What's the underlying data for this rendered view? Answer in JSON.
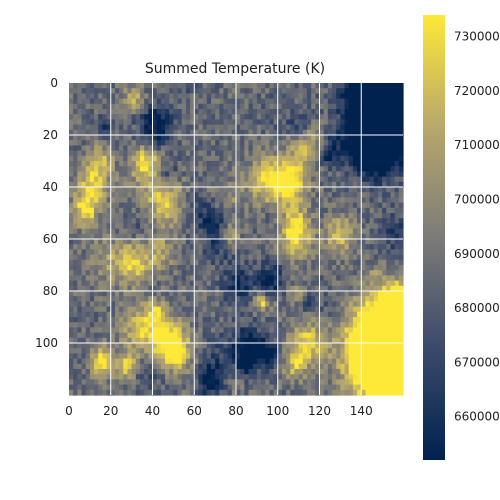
{
  "chart_data": {
    "type": "heatmap",
    "title": "Summed Temperature (K)",
    "colormap": "cividis",
    "grid": true,
    "grid_color": "#ffffff",
    "x_range": [
      0,
      160
    ],
    "y_range": [
      0,
      120
    ],
    "y_inverted": true,
    "x_ticks": [
      "0",
      "20",
      "40",
      "60",
      "80",
      "100",
      "120",
      "140"
    ],
    "y_ticks": [
      "0",
      "20",
      "40",
      "60",
      "80",
      "100"
    ],
    "colorbar": {
      "min": 652000,
      "max": 734000,
      "ticks": [
        "730000",
        "720000",
        "710000",
        "700000",
        "690000",
        "680000",
        "670000",
        "660000"
      ],
      "tick_values": [
        730000,
        720000,
        710000,
        700000,
        690000,
        680000,
        670000,
        660000
      ]
    },
    "value_summary": "Noisy field mostly 670000–715000 K with scattered hot spots near 730000 K; dark cold region in top-right corner (x≈140–160, y≈0–20) and bright hot region at bottom-right (x≈135–160, y≈90–115)"
  }
}
